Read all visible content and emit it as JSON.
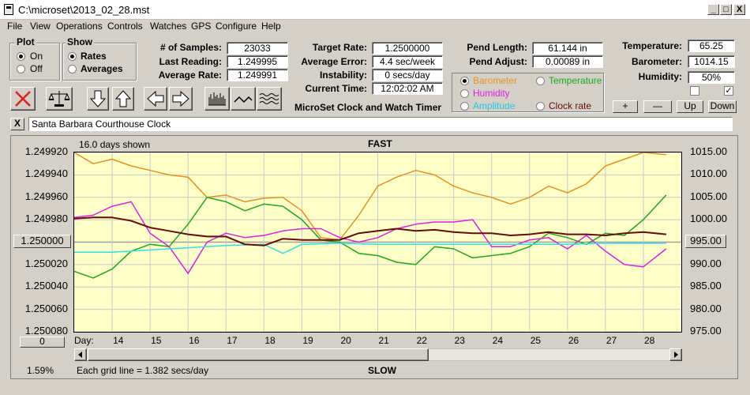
{
  "window": {
    "title": "C:\\microset\\2013_02_28.mst",
    "min_label": "_",
    "max_label": "□",
    "close_label": "X"
  },
  "menu": [
    "File",
    "View",
    "Operations",
    "Controls",
    "Watches",
    "GPS",
    "Configure",
    "Help"
  ],
  "plot_group": {
    "title": "Plot",
    "on": "On",
    "off": "Off",
    "selected": "On"
  },
  "show_group": {
    "title": "Show",
    "rates": "Rates",
    "averages": "Averages",
    "selected": "Rates"
  },
  "stats": {
    "samples_label": "# of Samples:",
    "samples": "23033",
    "last_label": "Last Reading:",
    "last": "1.249995",
    "avg_rate_label": "Average Rate:",
    "avg_rate": "1.249991",
    "target_label": "Target Rate:",
    "target": "1.2500000",
    "avg_err_label": "Average Error:",
    "avg_err": "4.4 sec/week",
    "instab_label": "Instability:",
    "instab": "0 secs/day",
    "time_label": "Current Time:",
    "time": "12:02:02 AM",
    "pend_len_label": "Pend Length:",
    "pend_len": "61.144 in",
    "pend_adj_label": "Pend Adjust:",
    "pend_adj": "0.00089 in",
    "temp_label": "Temperature:",
    "temp": "65.25",
    "baro_label": "Barometer:",
    "baro": "1014.15",
    "hum_label": "Humidity:",
    "hum": "50%"
  },
  "app_title": "MicroSet Clock and Watch Timer",
  "sensor_options": {
    "barometer": "Barometer",
    "temperature": "Temperature",
    "humidity": "Humidity",
    "amplitude": "Amplitude",
    "clock_rate": "Clock rate",
    "selected": "Barometer"
  },
  "sensor_buttons": {
    "plus": "+",
    "minus": "—",
    "up": "Up",
    "down": "Down"
  },
  "checkboxes": {
    "left": false,
    "right": true,
    "right_mark": "✓"
  },
  "toolbar_icons": [
    "stop-icon",
    "balance-icon",
    "arrow-down-icon",
    "arrow-up-icon",
    "arrow-left-icon",
    "arrow-right-icon",
    "bar-graph-icon",
    "line-graph-icon",
    "wave-graph-icon"
  ],
  "clock_name": {
    "close_label": "X",
    "value": "Santa Barbara Courthouse Clock"
  },
  "chart": {
    "days_shown": "16.0 days shown",
    "top_label": "FAST",
    "bottom_label": "SLOW",
    "center_button": "1.250000",
    "right_button": "995.00",
    "zero_button": "0",
    "day_prefix": "Day:",
    "grid_note": "Each grid line = 1.382 secs/day",
    "percent": "1.59%"
  },
  "chart_data": {
    "type": "line",
    "x_label": "Day:",
    "x_ticks": [
      "14",
      "15",
      "16",
      "17",
      "18",
      "19",
      "20",
      "21",
      "22",
      "23",
      "24",
      "25",
      "26",
      "27",
      "28"
    ],
    "xlim": [
      13.0,
      29.0
    ],
    "y_left_ticks": [
      "1.249920",
      "1.249940",
      "1.249960",
      "1.249980",
      "1.250000",
      "1.250020",
      "1.250040",
      "1.250060",
      "1.250080"
    ],
    "ylim_left": [
      1.24992,
      1.25008
    ],
    "y_right_ticks": [
      "1015.00",
      "1010.00",
      "1005.00",
      "1000.00",
      "995.00",
      "990.00",
      "985.00",
      "980.00",
      "975.00"
    ],
    "ylim_right": [
      1015.0,
      975.0
    ],
    "grid": true,
    "colors": {
      "barometer": "#e8901e",
      "temperature": "#1aaa1a",
      "humidity": "#e020e0",
      "amplitude": "#30e0e8",
      "clock_rate": "#6a0a0a",
      "background": "#ffffc8"
    },
    "series": [
      {
        "name": "Barometer",
        "color": "#e8901e",
        "axis": "right",
        "x": [
          13.0,
          13.5,
          14.0,
          14.5,
          15.0,
          15.5,
          16.0,
          16.5,
          17.0,
          17.5,
          18.0,
          18.5,
          19.0,
          19.5,
          20.0,
          20.5,
          21.0,
          21.5,
          22.0,
          22.5,
          23.0,
          23.5,
          24.0,
          24.5,
          25.0,
          25.5,
          26.0,
          26.5,
          27.0,
          27.5,
          28.0,
          28.6
        ],
        "values": [
          1015.0,
          1012.5,
          1013.5,
          1012.0,
          1011.0,
          1010.0,
          1009.5,
          1005.0,
          1005.5,
          1004.0,
          1004.8,
          1005.0,
          1002.0,
          996.0,
          995.5,
          1001.0,
          1007.5,
          1009.5,
          1011.0,
          1010.0,
          1007.5,
          1006.0,
          1005.0,
          1003.5,
          1005.0,
          1007.5,
          1006.0,
          1008.0,
          1012.0,
          1013.5,
          1015.0,
          1014.5
        ]
      },
      {
        "name": "Temperature",
        "color": "#1aaa1a",
        "axis": "right",
        "x": [
          13.0,
          13.5,
          14.0,
          14.5,
          15.0,
          15.5,
          16.0,
          16.5,
          17.0,
          17.5,
          18.0,
          18.5,
          19.0,
          19.5,
          20.0,
          20.5,
          21.0,
          21.5,
          22.0,
          22.5,
          23.0,
          23.5,
          24.0,
          24.5,
          25.0,
          25.5,
          26.0,
          26.5,
          27.0,
          27.5,
          28.0,
          28.6
        ],
        "values": [
          988.5,
          987.0,
          989.0,
          993.0,
          994.5,
          994.0,
          999.0,
          1005.0,
          1004.0,
          1002.0,
          1003.5,
          1003.0,
          1000.0,
          995.5,
          995.0,
          992.5,
          992.0,
          990.5,
          990.0,
          994.0,
          993.5,
          991.5,
          992.0,
          992.5,
          994.0,
          997.0,
          996.0,
          994.5,
          997.0,
          996.5,
          1000.0,
          1005.5
        ]
      },
      {
        "name": "Humidity",
        "color": "#e020e0",
        "axis": "right",
        "x": [
          13.0,
          13.5,
          14.0,
          14.5,
          15.0,
          15.5,
          16.0,
          16.5,
          17.0,
          17.5,
          18.0,
          18.5,
          19.0,
          19.5,
          20.0,
          20.5,
          21.0,
          21.5,
          22.0,
          22.5,
          23.0,
          23.5,
          24.0,
          24.5,
          25.0,
          25.5,
          26.0,
          26.5,
          27.0,
          27.5,
          28.0,
          28.6
        ],
        "values": [
          1000.5,
          1001.0,
          1003.0,
          1004.0,
          997.0,
          994.0,
          988.0,
          995.0,
          997.0,
          996.0,
          996.5,
          997.5,
          998.0,
          998.0,
          996.0,
          995.0,
          996.0,
          998.0,
          999.0,
          999.5,
          999.5,
          1000.0,
          994.0,
          994.0,
          995.5,
          996.0,
          993.5,
          996.5,
          993.0,
          990.0,
          989.5,
          993.5
        ]
      },
      {
        "name": "Amplitude",
        "color": "#30e0e8",
        "axis": "left",
        "x": [
          13.0,
          14.0,
          15.0,
          16.0,
          17.0,
          18.0,
          18.5,
          19.0,
          20.0,
          21.0,
          22.0,
          23.0,
          24.0,
          25.0,
          26.0,
          27.0,
          28.0,
          28.6
        ],
        "values": [
          1.250009,
          1.250009,
          1.250007,
          1.250005,
          1.250003,
          1.250002,
          1.25001,
          1.250002,
          1.250001,
          1.250002,
          1.250002,
          1.250002,
          1.250002,
          1.250002,
          1.250002,
          1.250001,
          1.250001,
          1.250001
        ]
      },
      {
        "name": "Clock rate",
        "color": "#6a0a0a",
        "axis": "left",
        "x": [
          13.0,
          13.5,
          14.0,
          14.5,
          15.0,
          15.5,
          16.0,
          16.5,
          17.0,
          17.5,
          18.0,
          18.5,
          19.0,
          19.5,
          20.0,
          20.5,
          21.0,
          21.5,
          22.0,
          22.5,
          23.0,
          23.5,
          24.0,
          24.5,
          25.0,
          25.5,
          26.0,
          26.5,
          27.0,
          27.5,
          28.0,
          28.6
        ],
        "values": [
          1.249979,
          1.249978,
          1.249978,
          1.249981,
          1.249987,
          1.24999,
          1.249993,
          1.249995,
          1.249995,
          1.250002,
          1.250003,
          1.249997,
          1.249998,
          1.249998,
          1.249998,
          1.249992,
          1.24999,
          1.249988,
          1.24999,
          1.249989,
          1.249991,
          1.249992,
          1.249992,
          1.249994,
          1.249993,
          1.249991,
          1.249993,
          1.249993,
          1.249994,
          1.249992,
          1.249991,
          1.249993
        ]
      }
    ]
  }
}
